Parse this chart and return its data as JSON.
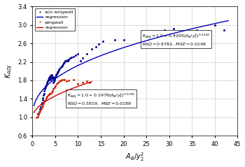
{
  "xlabel": "$A_B/y_2^2$",
  "ylabel": "$K_{ADJ}$",
  "xlim": [
    0,
    45
  ],
  "ylim": [
    0.6,
    3.4
  ],
  "xticks": [
    0,
    5,
    10,
    15,
    20,
    25,
    30,
    35,
    40,
    45
  ],
  "yticks": [
    0.6,
    1.0,
    1.4,
    1.8,
    2.2,
    2.6,
    3.0,
    3.4
  ],
  "blue_eq_a": 0.4205,
  "blue_eq_b": 0.4263,
  "red_eq_a": 0.1978,
  "red_eq_b": 0.5308,
  "blue_color": "#0000bb",
  "red_color": "#cc0000",
  "scatter_blue_color": "#00008B",
  "scatter_red_color": "#cc2200",
  "bg_color": "#ffffff",
  "plot_bg_color": "#ffffff",
  "blue_annotation_line1": "$K_{ADJ}=1.0+0.4205(A_B/y_2^2)^{0.4263}$",
  "blue_annotation_line2": "$RSQ=0.8782,\\ MSE=0.0148$",
  "red_annotation_line1": "$K_{ADJ}=1.0+0.1978(A_B/y_2^2)^{0.5308}$",
  "red_annotation_line2": "$RSQ=0.5819,\\ MSE=0.0189$",
  "blue_scatter_x": [
    1.2,
    1.4,
    1.6,
    1.8,
    2.0,
    2.1,
    2.2,
    2.3,
    2.35,
    2.5,
    2.6,
    2.7,
    2.8,
    2.9,
    3.0,
    3.1,
    3.2,
    3.3,
    3.4,
    3.5,
    3.6,
    3.7,
    3.8,
    3.9,
    4.0,
    4.1,
    4.2,
    4.3,
    4.4,
    4.5,
    4.6,
    4.7,
    4.8,
    4.9,
    5.0,
    5.1,
    5.2,
    5.3,
    5.4,
    5.5,
    5.7,
    5.8,
    6.0,
    6.2,
    6.4,
    6.5,
    6.7,
    6.9,
    7.0,
    7.2,
    7.4,
    7.6,
    7.8,
    8.0,
    8.3,
    8.6,
    9.0,
    9.5,
    10.0,
    10.5,
    11.0,
    12.0,
    13.0,
    14.0,
    14.5,
    15.5,
    18.0,
    20.0,
    24.0,
    29.0,
    31.0,
    36.0,
    40.0,
    42.0
  ],
  "blue_scatter_y": [
    1.08,
    1.12,
    1.18,
    1.22,
    1.28,
    1.32,
    1.38,
    1.42,
    1.48,
    1.52,
    1.58,
    1.62,
    1.65,
    1.68,
    1.7,
    1.72,
    1.75,
    1.78,
    1.8,
    1.82,
    1.84,
    1.86,
    1.88,
    1.9,
    1.82,
    1.85,
    1.88,
    1.92,
    1.85,
    1.88,
    1.76,
    1.79,
    1.82,
    1.85,
    1.88,
    1.9,
    1.92,
    1.94,
    1.96,
    1.98,
    2.0,
    2.02,
    2.05,
    2.08,
    2.1,
    2.12,
    2.15,
    2.18,
    2.2,
    2.22,
    2.22,
    2.24,
    2.22,
    2.25,
    2.28,
    2.3,
    2.32,
    2.35,
    2.38,
    2.22,
    2.28,
    2.38,
    2.48,
    2.52,
    2.58,
    2.65,
    2.68,
    2.68,
    2.82,
    2.88,
    2.92,
    2.88,
    3.0,
    2.88
  ],
  "red_scatter_x": [
    0.9,
    1.1,
    1.3,
    1.5,
    1.7,
    1.9,
    2.1,
    2.2,
    2.4,
    2.6,
    2.8,
    3.0,
    3.2,
    3.4,
    3.6,
    3.8,
    4.0,
    4.2,
    4.4,
    4.6,
    4.8,
    5.0,
    5.3,
    5.6,
    5.9,
    6.2,
    6.5,
    7.0,
    7.5,
    8.0,
    9.0,
    10.0,
    11.0,
    12.0,
    12.5
  ],
  "red_scatter_y": [
    1.0,
    1.02,
    1.06,
    1.1,
    1.14,
    1.18,
    1.22,
    1.26,
    1.3,
    1.35,
    1.38,
    1.42,
    1.45,
    1.48,
    1.5,
    1.52,
    1.52,
    1.55,
    1.58,
    1.62,
    1.65,
    1.68,
    1.72,
    1.75,
    1.78,
    1.8,
    1.82,
    1.82,
    1.78,
    1.8,
    1.82,
    1.72,
    1.75,
    1.78,
    1.76
  ]
}
